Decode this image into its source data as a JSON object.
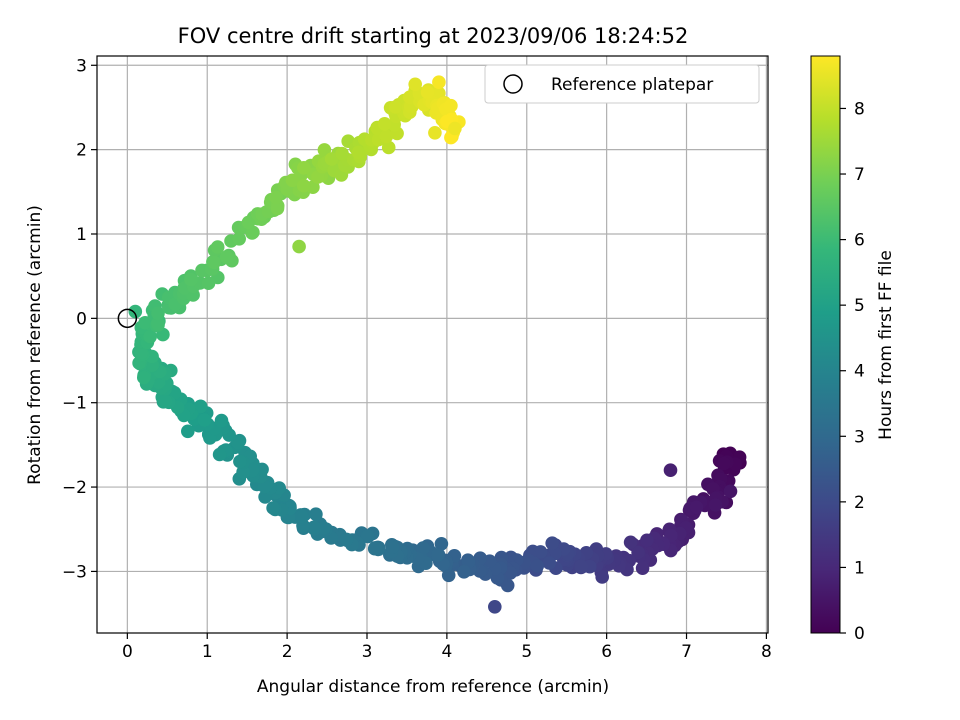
{
  "chart_data": {
    "type": "scatter",
    "title": "FOV centre drift starting at 2023/09/06 18:24:52",
    "xlabel": "Angular distance from reference (arcmin)",
    "ylabel": "Rotation from reference (arcmin)",
    "xlim": [
      -0.38,
      8.02
    ],
    "ylim": [
      -3.73,
      3.11
    ],
    "xticks": [
      0,
      1,
      2,
      3,
      4,
      5,
      6,
      7,
      8
    ],
    "yticks": [
      -3,
      -2,
      -1,
      0,
      1,
      2,
      3
    ],
    "grid": true,
    "legend": {
      "position": "top-right",
      "label": "Reference platepar"
    },
    "reference_point": {
      "x": 0,
      "y": 0
    },
    "colorbar": {
      "label": "Hours from first FF file",
      "min": 0,
      "max": 8.8,
      "ticks": [
        0,
        1,
        2,
        3,
        4,
        5,
        6,
        7,
        8
      ],
      "colormap": [
        "#440154",
        "#482878",
        "#3e4989",
        "#31688e",
        "#26828e",
        "#1f9e89",
        "#35b779",
        "#6ece58",
        "#b5de2b",
        "#fde725"
      ]
    },
    "color_variable": "Hours from first FF file",
    "anchors": [
      {
        "t": 0.0,
        "x": 7.6,
        "y": -1.65
      },
      {
        "t": 0.3,
        "x": 7.4,
        "y": -2.0
      },
      {
        "t": 0.7,
        "x": 7.0,
        "y": -2.45
      },
      {
        "t": 1.1,
        "x": 6.5,
        "y": -2.75
      },
      {
        "t": 1.5,
        "x": 6.0,
        "y": -2.9
      },
      {
        "t": 2.0,
        "x": 5.3,
        "y": -2.8
      },
      {
        "t": 2.4,
        "x": 4.7,
        "y": -3.0
      },
      {
        "t": 2.8,
        "x": 4.0,
        "y": -2.85
      },
      {
        "t": 3.3,
        "x": 3.2,
        "y": -2.75
      },
      {
        "t": 3.7,
        "x": 2.4,
        "y": -2.5
      },
      {
        "t": 4.1,
        "x": 1.8,
        "y": -2.1
      },
      {
        "t": 4.6,
        "x": 1.2,
        "y": -1.45
      },
      {
        "t": 5.1,
        "x": 0.6,
        "y": -0.95
      },
      {
        "t": 5.6,
        "x": 0.2,
        "y": -0.5
      },
      {
        "t": 6.0,
        "x": 0.3,
        "y": 0.0
      },
      {
        "t": 6.4,
        "x": 0.9,
        "y": 0.45
      },
      {
        "t": 6.8,
        "x": 1.6,
        "y": 1.15
      },
      {
        "t": 7.2,
        "x": 2.2,
        "y": 1.65
      },
      {
        "t": 7.7,
        "x": 2.9,
        "y": 2.0
      },
      {
        "t": 8.1,
        "x": 3.4,
        "y": 2.45
      },
      {
        "t": 8.4,
        "x": 3.8,
        "y": 2.65
      },
      {
        "t": 8.8,
        "x": 4.1,
        "y": 2.25
      }
    ],
    "extra_points": [
      {
        "t": 0.8,
        "x": 6.8,
        "y": -1.8
      },
      {
        "t": 0.5,
        "x": 7.55,
        "y": -2.05
      },
      {
        "t": 1.9,
        "x": 4.6,
        "y": -3.42
      },
      {
        "t": 5.8,
        "x": 0.1,
        "y": 0.08
      },
      {
        "t": 8.7,
        "x": 3.9,
        "y": 2.8
      },
      {
        "t": 8.6,
        "x": 4.1,
        "y": 2.25
      },
      {
        "t": 8.5,
        "x": 3.85,
        "y": 2.2
      },
      {
        "t": 7.3,
        "x": 2.15,
        "y": 0.85
      }
    ]
  }
}
